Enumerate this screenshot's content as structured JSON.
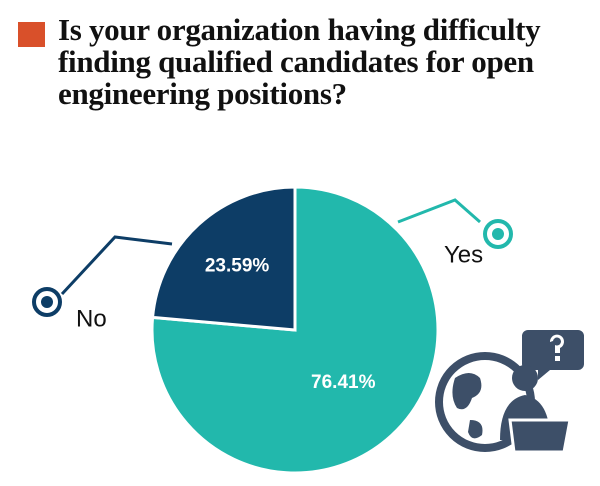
{
  "chart_data": {
    "type": "pie",
    "title": "Is your organization having difficulty finding qualified candidates for open engineering positions?",
    "categories": [
      "Yes",
      "No"
    ],
    "values": [
      76.41,
      23.59
    ],
    "value_labels": [
      "76.41%",
      "23.59%"
    ],
    "colors": [
      "#22b8ac",
      "#0d3d66"
    ]
  }
}
